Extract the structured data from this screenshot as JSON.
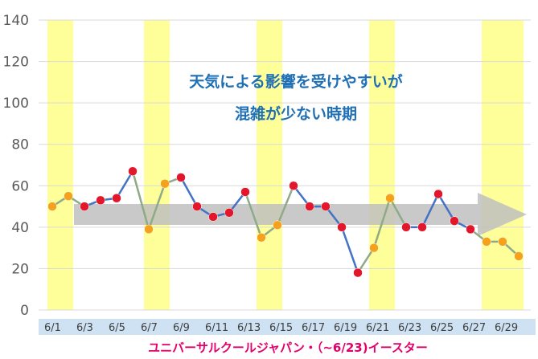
{
  "chart_data": {
    "type": "line",
    "caption": "ユニバーサルクールジャパン・（~6/23)イースター",
    "annotations": [
      "天気による影響を受けやすいが",
      "混雑が少ない時期"
    ],
    "ylim": [
      0,
      140
    ],
    "y_ticks": [
      0,
      20,
      40,
      60,
      80,
      100,
      120,
      140
    ],
    "x_tick_labels": [
      "6/1",
      "6/3",
      "6/5",
      "6/7",
      "6/9",
      "6/11",
      "6/13",
      "6/15",
      "6/17",
      "6/19",
      "6/21",
      "6/23",
      "6/25",
      "6/27",
      "6/29"
    ],
    "x": [
      "6/1",
      "6/2",
      "6/3",
      "6/4",
      "6/5",
      "6/6",
      "6/7",
      "6/8",
      "6/9",
      "6/10",
      "6/11",
      "6/12",
      "6/13",
      "6/14",
      "6/15",
      "6/16",
      "6/17",
      "6/18",
      "6/19",
      "6/20",
      "6/21",
      "6/22",
      "6/23",
      "6/24",
      "6/25",
      "6/26",
      "6/27",
      "6/28",
      "6/29",
      "6/30"
    ],
    "values": [
      50,
      55,
      50,
      53,
      54,
      67,
      39,
      61,
      64,
      50,
      45,
      47,
      57,
      35,
      41,
      60,
      50,
      50,
      40,
      18,
      30,
      54,
      40,
      40,
      56,
      43,
      39,
      33,
      33,
      26
    ],
    "weekend_dates": [
      "6/1",
      "6/2",
      "6/7",
      "6/8",
      "6/14",
      "6/15",
      "6/21",
      "6/22",
      "6/28",
      "6/29",
      "6/30"
    ],
    "grid": true,
    "colors": {
      "line": "#4472c4",
      "weekend_line": "#8faa87",
      "point_weekday": "#e3172b",
      "point_weekend": "#f4a11c",
      "weekend_band": "#ffff99",
      "trend_arrow": "#bfbfbf",
      "annotation_text": "#1f6fb5",
      "caption_text": "#e4006a",
      "x_axis_band": "#cfe2f3"
    }
  }
}
